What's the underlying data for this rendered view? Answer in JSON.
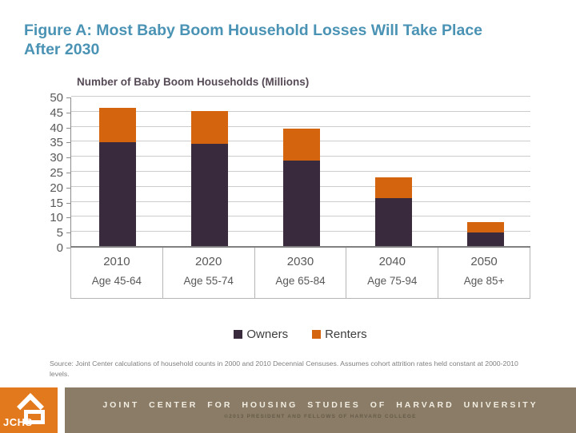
{
  "slide": {
    "title": "Figure A: Most Baby Boom Household Losses Will Take Place After 2030"
  },
  "chart_data": {
    "type": "bar",
    "stacked": true,
    "title": "Number of Baby Boom Households (Millions)",
    "categories": [
      "2010",
      "2020",
      "2030",
      "2040",
      "2050"
    ],
    "category_sublabels": [
      "Age 45-64",
      "Age 55-74",
      "Age 65-84",
      "Age 75-94",
      "Age 85+"
    ],
    "series": [
      {
        "name": "Owners",
        "color": "#3a2a3e",
        "values": [
          34.5,
          34,
          28.5,
          16,
          4.5
        ]
      },
      {
        "name": "Renters",
        "color": "#d4650e",
        "values": [
          11.5,
          11,
          10.5,
          7,
          3.5
        ]
      }
    ],
    "totals": [
      46,
      45,
      39,
      23,
      8
    ],
    "ylim": [
      0,
      50
    ],
    "ytick_step": 5,
    "grid": true,
    "legend_position": "bottom"
  },
  "source_note": {
    "text": "Source: Joint Center calculations of household counts in 2000 and 2010 Decennial Censuses. Assumes cohort attrition rates held constant at 2000-2010 levels."
  },
  "footer": {
    "logo_text": "JCHS",
    "org_name": "JOINT CENTER FOR HOUSING STUDIES OF HARVARD UNIVERSITY",
    "copyright": "©2013 PRESIDENT AND FELLOWS OF HARVARD COLLEGE"
  },
  "colors": {
    "title": "#4a93b4",
    "owners": "#3a2a3e",
    "renters": "#d4650e",
    "footer_bar": "#8a7c66",
    "logo_orange": "#e2791c",
    "gridline": "#cccccc"
  }
}
